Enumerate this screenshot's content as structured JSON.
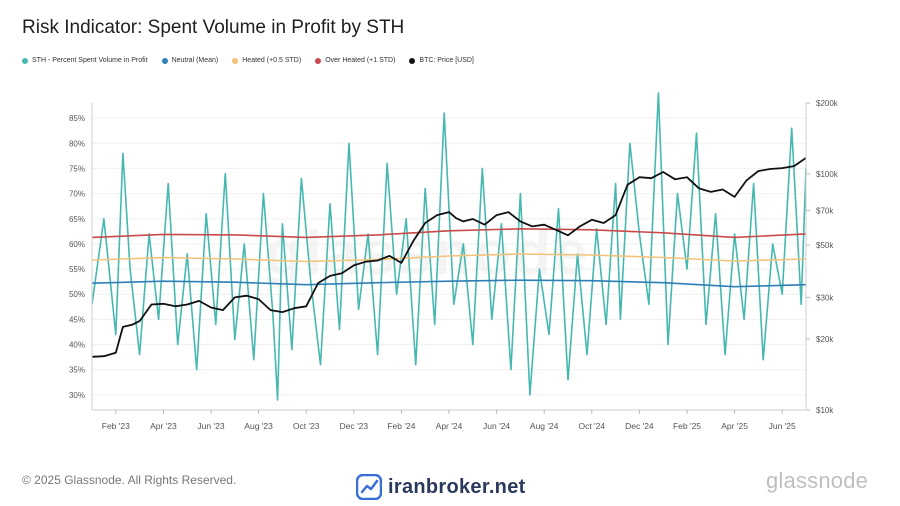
{
  "title": "Risk Indicator: Spent Volume in Profit by STH",
  "legend": [
    {
      "label": "STH - Percent Spent Volume in Profit",
      "color": "#46b8b0"
    },
    {
      "label": "Neutral (Mean)",
      "color": "#2f7fb6"
    },
    {
      "label": "Heated (+0.5 STD)",
      "color": "#f2c27a"
    },
    {
      "label": "Over Heated (+1 STD)",
      "color": "#c94a4a"
    },
    {
      "label": "BTC: Price [USD]",
      "color": "#111111"
    }
  ],
  "footer": {
    "copyright": "© 2025 Glassnode. All Rights Reserved.",
    "center_brand": "iranbroker.net",
    "right_brand": "glassnode",
    "watermark": "glassnode"
  },
  "chart_data": {
    "type": "line",
    "x_ticks": [
      "Feb '23",
      "Apr '23",
      "Jun '23",
      "Aug '23",
      "Oct '23",
      "Dec '23",
      "Feb '24",
      "Apr '24",
      "Jun '24",
      "Aug '24",
      "Oct '24",
      "Dec '24",
      "Feb '25",
      "Apr '25",
      "Jun '25"
    ],
    "x_range_months": [
      0,
      30
    ],
    "left_axis": {
      "ticks": [
        "85%",
        "80%",
        "75%",
        "70%",
        "65%",
        "60%",
        "55%",
        "50%",
        "45%",
        "40%",
        "35%",
        "30%"
      ],
      "ylim": [
        27,
        88
      ]
    },
    "right_axis": {
      "scale": "log",
      "ticks": [
        "$200k",
        "$100k",
        "$70k",
        "$50k",
        "$30k",
        "$20k",
        "$10k"
      ],
      "tick_values": [
        200000,
        100000,
        70000,
        50000,
        30000,
        20000,
        10000
      ],
      "ylim": [
        10000,
        200000
      ]
    },
    "grid": true,
    "series": [
      {
        "name": "STH - Percent Spent Volume in Profit",
        "axis": "left",
        "x": [
          0,
          0.5,
          1,
          1.3,
          1.6,
          2,
          2.4,
          2.8,
          3.2,
          3.6,
          4,
          4.4,
          4.8,
          5.2,
          5.6,
          6,
          6.4,
          6.8,
          7.2,
          7.6,
          7.8,
          8,
          8.4,
          8.8,
          9.2,
          9.6,
          10,
          10.4,
          10.8,
          11.2,
          11.6,
          12,
          12.4,
          12.8,
          13.2,
          13.6,
          14,
          14.4,
          14.8,
          15.2,
          15.6,
          16,
          16.4,
          16.8,
          17.2,
          17.6,
          18,
          18.4,
          18.8,
          19.2,
          19.6,
          20,
          20.4,
          20.8,
          21.2,
          21.6,
          22,
          22.2,
          22.6,
          23,
          23.4,
          23.8,
          24.2,
          24.6,
          25,
          25.4,
          25.8,
          26.2,
          26.6,
          27,
          27.4,
          27.8,
          28.2,
          28.6,
          29,
          29.4,
          29.8,
          30
        ],
        "values": [
          48,
          65,
          42,
          78,
          55,
          38,
          62,
          45,
          72,
          40,
          58,
          35,
          66,
          44,
          74,
          41,
          60,
          37,
          70,
          46,
          29,
          64,
          39,
          73,
          52,
          36,
          68,
          43,
          80,
          47,
          62,
          38,
          76,
          50,
          65,
          36,
          71,
          44,
          86,
          48,
          60,
          40,
          75,
          45,
          64,
          35,
          70,
          30,
          55,
          42,
          67,
          33,
          58,
          38,
          63,
          44,
          72,
          45,
          80,
          62,
          48,
          90,
          40,
          70,
          55,
          82,
          44,
          66,
          38,
          62,
          45,
          72,
          37,
          60,
          50,
          83,
          48,
          75
        ]
      },
      {
        "name": "Neutral (Mean)",
        "axis": "left",
        "x": [
          0,
          3,
          6,
          9,
          12,
          15,
          18,
          21,
          24,
          27,
          30
        ],
        "values": [
          52.2,
          52.6,
          52.4,
          51.9,
          52.3,
          52.6,
          52.8,
          52.7,
          52.3,
          51.5,
          51.9
        ]
      },
      {
        "name": "Heated (+0.5 STD)",
        "axis": "left",
        "x": [
          0,
          3,
          6,
          9,
          12,
          15,
          18,
          21,
          24,
          27,
          30
        ],
        "values": [
          56.8,
          57.3,
          57.0,
          56.5,
          56.9,
          57.6,
          58.0,
          57.8,
          57.3,
          56.6,
          57.0
        ]
      },
      {
        "name": "Over Heated (+1 STD)",
        "axis": "left",
        "x": [
          0,
          3,
          6,
          9,
          12,
          15,
          18,
          21,
          24,
          27,
          30
        ],
        "values": [
          61.3,
          61.9,
          61.8,
          61.3,
          61.8,
          62.6,
          63.0,
          62.8,
          62.2,
          61.3,
          62.0
        ]
      },
      {
        "name": "BTC: Price [USD]",
        "axis": "right",
        "x": [
          0,
          0.5,
          1,
          1.3,
          1.7,
          2.0,
          2.5,
          3.0,
          3.5,
          4.0,
          4.5,
          5.0,
          5.5,
          6.0,
          6.5,
          7.0,
          7.5,
          8.0,
          8.5,
          9.0,
          9.5,
          10.0,
          10.5,
          11.0,
          11.5,
          12.0,
          12.5,
          13.0,
          13.5,
          14.0,
          14.5,
          15.0,
          15.3,
          15.6,
          16.0,
          16.5,
          17.0,
          17.5,
          18.0,
          18.5,
          19.0,
          19.5,
          20.0,
          20.5,
          21.0,
          21.5,
          22.0,
          22.5,
          23.0,
          23.5,
          24.0,
          24.5,
          25.0,
          25.5,
          26.0,
          26.5,
          27.0,
          27.5,
          28.0,
          28.5,
          29.0,
          29.5,
          30.0
        ],
        "values": [
          16800,
          16900,
          17500,
          22500,
          23000,
          23800,
          28000,
          28200,
          27500,
          28000,
          29000,
          27200,
          26500,
          30000,
          30500,
          29500,
          26500,
          26000,
          27000,
          27500,
          34500,
          37000,
          38000,
          41000,
          42500,
          43000,
          45000,
          42000,
          52000,
          62000,
          67000,
          69000,
          65000,
          63000,
          64500,
          61000,
          67000,
          69000,
          63000,
          60000,
          61000,
          58000,
          55000,
          60000,
          64000,
          62000,
          67000,
          90000,
          97000,
          96000,
          102000,
          95000,
          97000,
          87000,
          84000,
          86000,
          80000,
          94000,
          103000,
          105000,
          106000,
          108000,
          117000
        ]
      }
    ]
  }
}
